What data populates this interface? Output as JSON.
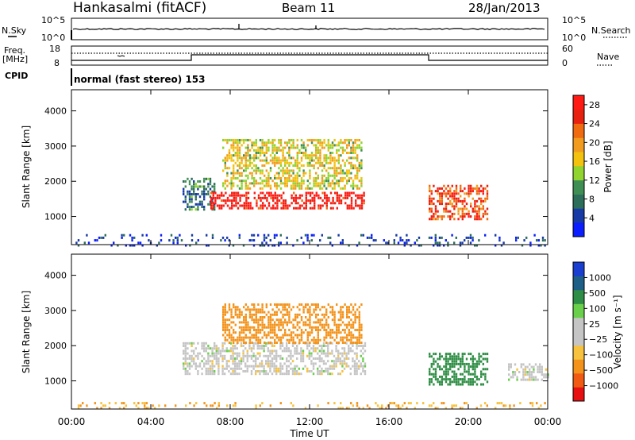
{
  "header": {
    "station": "Hankasalmi (fitACF)",
    "beam": "Beam 11",
    "date": "28/Jan/2013"
  },
  "nsky_panel": {
    "left_label": "N.Sky",
    "left_ticks": [
      "10^5",
      "10^0"
    ],
    "right_ticks": [
      "10^5",
      "10^0"
    ],
    "right_label": "N.Search"
  },
  "freq_panel": {
    "left_label_line1": "Freq.",
    "left_label_line2": "[MHz]",
    "left_ticks": [
      "18",
      "8"
    ],
    "right_ticks": [
      "60",
      "0"
    ],
    "right_label": "Nave"
  },
  "cpid_panel": {
    "label": "CPID",
    "mode_text": "normal (fast stereo) 153"
  },
  "x_axis": {
    "ticks": [
      "00:00",
      "04:00",
      "08:00",
      "12:00",
      "16:00",
      "20:00",
      "00:00"
    ],
    "label": "Time UT"
  },
  "colors": {
    "power_scale": [
      "#0a1eff",
      "#173aa6",
      "#2c6e5a",
      "#3f8f55",
      "#8fd42f",
      "#f2c20f",
      "#f29c1f",
      "#f06a10",
      "#e8210e",
      "#ff1a14"
    ],
    "velocity_scale": [
      "#e80f10",
      "#f05a12",
      "#f3931c",
      "#f7c23d",
      "#c5c5c5",
      "#c5c5c5",
      "#6ad04b",
      "#2f8e45",
      "#1d5f86",
      "#1a3fd0"
    ]
  },
  "chart_data": [
    {
      "type": "heatmap",
      "title": "",
      "xlabel": "",
      "ylabel": "Slant Range [km]",
      "x_range_hours": [
        0,
        24
      ],
      "ylim": [
        200,
        4600
      ],
      "y_ticks": [
        "1000",
        "2000",
        "3000",
        "4000"
      ],
      "colorbar": {
        "label": "Power [dB]",
        "ticks": [
          "4",
          "8",
          "12",
          "16",
          "20",
          "24",
          "28"
        ]
      },
      "echo_regions": [
        {
          "t_start_hours": 0.0,
          "t_end_hours": 24.0,
          "range_min_km": 200,
          "range_max_km": 500,
          "power_db": 4
        },
        {
          "t_start_hours": 5.6,
          "t_end_hours": 7.2,
          "range_min_km": 1200,
          "range_max_km": 2100,
          "power_db": 8
        },
        {
          "t_start_hours": 7.0,
          "t_end_hours": 14.8,
          "range_min_km": 1200,
          "range_max_km": 1700,
          "power_db": 28
        },
        {
          "t_start_hours": 7.6,
          "t_end_hours": 14.6,
          "range_min_km": 1800,
          "range_max_km": 3200,
          "power_db": 16
        },
        {
          "t_start_hours": 18.0,
          "t_end_hours": 21.0,
          "range_min_km": 900,
          "range_max_km": 1900,
          "power_db": 24
        }
      ]
    },
    {
      "type": "heatmap",
      "title": "",
      "xlabel": "Time UT",
      "ylabel": "Slant Range [km]",
      "x_range_hours": [
        0,
        24
      ],
      "ylim": [
        200,
        4600
      ],
      "y_ticks": [
        "1000",
        "2000",
        "3000",
        "4000"
      ],
      "colorbar": {
        "label": "Velocity [m s⁻¹]",
        "ticks": [
          "1000",
          "500",
          "100",
          "25",
          "−25",
          "−100",
          "−500",
          "−1000"
        ]
      },
      "echo_regions": [
        {
          "t_start_hours": 0.0,
          "t_end_hours": 24.0,
          "range_min_km": 200,
          "range_max_km": 400,
          "velocity_ms": -100
        },
        {
          "t_start_hours": 5.6,
          "t_end_hours": 14.8,
          "range_min_km": 1200,
          "range_max_km": 2100,
          "velocity_ms": 0
        },
        {
          "t_start_hours": 7.6,
          "t_end_hours": 14.6,
          "range_min_km": 2100,
          "range_max_km": 3200,
          "velocity_ms": -300
        },
        {
          "t_start_hours": 18.0,
          "t_end_hours": 21.0,
          "range_min_km": 900,
          "range_max_km": 1800,
          "velocity_ms": 300
        },
        {
          "t_start_hours": 22.0,
          "t_end_hours": 24.0,
          "range_min_km": 1000,
          "range_max_km": 1500,
          "velocity_ms": 0
        }
      ]
    }
  ]
}
